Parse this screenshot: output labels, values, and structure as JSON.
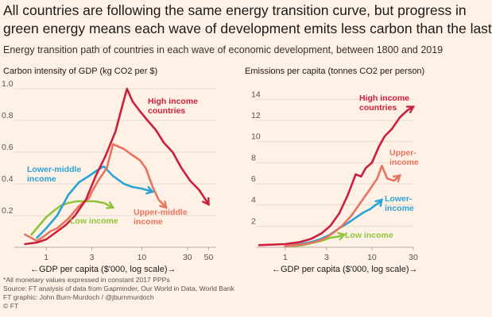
{
  "title_line1": "All countries are following the same energy transition curve, but progress in",
  "title_line2": "green energy means each wave of development emits less carbon than the last",
  "subtitle": "Energy transition path of countries in each wave of economic development, between 1800 and 2019",
  "footer": {
    "note": "*All monetary values expressed in constant 2017 PPPs",
    "source": "Source: FT analysis of data from Gapminder, Our World in Data, World Bank",
    "graphic": "FT graphic: John Burn-Murdoch / @jburnmurdoch",
    "copyright": "© FT"
  },
  "colors": {
    "high": "#cc1f3a",
    "upper_middle": "#e8735f",
    "lower_middle": "#29a3d6",
    "low": "#8fc43c"
  },
  "chart_data": [
    {
      "type": "line",
      "ylabel": "Carbon intensity of GDP (kg CO2 per $)",
      "xlabel": "←GDP per capita ($'000, log scale)→",
      "xscale": "log",
      "xlim": [
        0.5,
        60
      ],
      "ylim": [
        0,
        1.0
      ],
      "x_ticks": [
        "1",
        "3",
        "10",
        "30",
        "50"
      ],
      "x_tick_values": [
        1,
        3,
        10,
        30,
        50
      ],
      "y_ticks": [
        "1.0",
        "0.8",
        "0.6",
        "0.4",
        "0.2"
      ],
      "y_tick_values": [
        1.0,
        0.8,
        0.6,
        0.4,
        0.2
      ],
      "grid": true,
      "series": [
        {
          "name": "High income countries",
          "color_key": "high",
          "x": [
            0.6,
            0.8,
            1.0,
            1.3,
            1.6,
            2.0,
            2.6,
            3.3,
            4.2,
            5.3,
            6.5,
            7.0,
            8.0,
            9.5,
            11.5,
            14,
            17,
            21,
            26,
            32,
            40,
            50
          ],
          "y": [
            0.02,
            0.03,
            0.05,
            0.1,
            0.14,
            0.2,
            0.3,
            0.45,
            0.58,
            0.73,
            0.93,
            1.0,
            0.92,
            0.86,
            0.8,
            0.74,
            0.66,
            0.6,
            0.5,
            0.42,
            0.36,
            0.27
          ]
        },
        {
          "name": "Upper-middle income",
          "color_key": "upper_middle",
          "x": [
            0.6,
            0.8,
            0.95,
            1.1,
            1.3,
            1.7,
            2.2,
            2.8,
            3.0,
            3.5,
            4.3,
            5.0,
            6.5,
            8.0,
            9.5,
            11,
            13,
            15,
            18
          ],
          "y": [
            0.08,
            0.04,
            0.07,
            0.1,
            0.12,
            0.18,
            0.26,
            0.31,
            0.35,
            0.42,
            0.5,
            0.65,
            0.62,
            0.58,
            0.55,
            0.5,
            0.38,
            0.3,
            0.25
          ]
        },
        {
          "name": "Lower-middle income",
          "color_key": "lower_middle",
          "x": [
            0.8,
            1.0,
            1.3,
            1.7,
            2.2,
            2.8,
            3.5,
            4.0,
            5.0,
            6.5,
            8.0,
            10,
            13
          ],
          "y": [
            0.06,
            0.12,
            0.2,
            0.33,
            0.41,
            0.45,
            0.49,
            0.51,
            0.45,
            0.4,
            0.38,
            0.37,
            0.35
          ]
        },
        {
          "name": "Low income",
          "color_key": "low",
          "x": [
            0.7,
            0.85,
            1.0,
            1.2,
            1.4,
            1.7,
            2.1,
            2.6,
            3.2,
            4.0,
            5.0
          ],
          "y": [
            0.08,
            0.14,
            0.19,
            0.23,
            0.26,
            0.28,
            0.29,
            0.29,
            0.29,
            0.28,
            0.25
          ]
        }
      ],
      "labels": {
        "high": [
          "High income",
          "countries"
        ],
        "upper_middle": [
          "Upper-middle",
          "income"
        ],
        "lower_middle": [
          "Lower-middle",
          "income"
        ],
        "low": [
          "Low income"
        ]
      }
    },
    {
      "type": "line",
      "ylabel": "Emissions per capita (tonnes CO2 per person)",
      "xlabel": "←GDP per capita ($'000, log scale)→",
      "xscale": "log",
      "xlim": [
        0.5,
        30
      ],
      "ylim": [
        0,
        15
      ],
      "x_ticks": [
        "1",
        "3",
        "10",
        "30"
      ],
      "x_tick_values": [
        1,
        3,
        10,
        30
      ],
      "y_ticks": [
        "14",
        "12",
        "10",
        "8",
        "6",
        "4",
        "2"
      ],
      "y_tick_values": [
        14,
        12,
        10,
        8,
        6,
        4,
        2
      ],
      "grid": true,
      "series": [
        {
          "name": "High income countries",
          "color_key": "high",
          "x": [
            0.5,
            1.0,
            1.5,
            2.0,
            2.6,
            3.3,
            4.2,
            5.3,
            6.5,
            7.5,
            8.5,
            10,
            12,
            14,
            17,
            21,
            26,
            30
          ],
          "y": [
            0.2,
            0.3,
            0.5,
            0.8,
            1.3,
            2.0,
            3.2,
            5.0,
            6.9,
            6.7,
            7.5,
            8.0,
            9.5,
            10.5,
            11.2,
            12.3,
            13.0,
            13.3
          ]
        },
        {
          "name": "Upper-middle income",
          "color_key": "upper_middle",
          "x": [
            1.0,
            1.3,
            1.7,
            2.2,
            2.8,
            3.5,
            4.5,
            5.8,
            7.5,
            9.5,
            11.5,
            13,
            15,
            18,
            21
          ],
          "y": [
            0.1,
            0.2,
            0.3,
            0.5,
            0.8,
            1.3,
            2.0,
            3.0,
            4.3,
            5.5,
            6.5,
            7.7,
            6.5,
            6.3,
            6.8
          ]
        },
        {
          "name": "Lower-middle income",
          "color_key": "lower_middle",
          "x": [
            1.0,
            1.5,
            2.0,
            2.6,
            3.3,
            4.2,
            5.3,
            6.5,
            8.0,
            9.5,
            11,
            12,
            13
          ],
          "y": [
            0.1,
            0.3,
            0.5,
            0.8,
            1.2,
            1.8,
            2.3,
            2.8,
            3.3,
            3.6,
            4.0,
            4.2,
            4.5
          ]
        },
        {
          "name": "Low income",
          "color_key": "low",
          "x": [
            1.2,
            1.6,
            2.0,
            2.6,
            3.3,
            4.0,
            4.8
          ],
          "y": [
            0.1,
            0.2,
            0.4,
            0.6,
            0.9,
            1.0,
            1.2
          ]
        }
      ],
      "labels": {
        "high": [
          "High income",
          "countries"
        ],
        "upper_middle": [
          "Upper-",
          "income"
        ],
        "lower_middle": [
          "Lower-",
          "income"
        ],
        "low": [
          "Low income"
        ]
      }
    }
  ]
}
